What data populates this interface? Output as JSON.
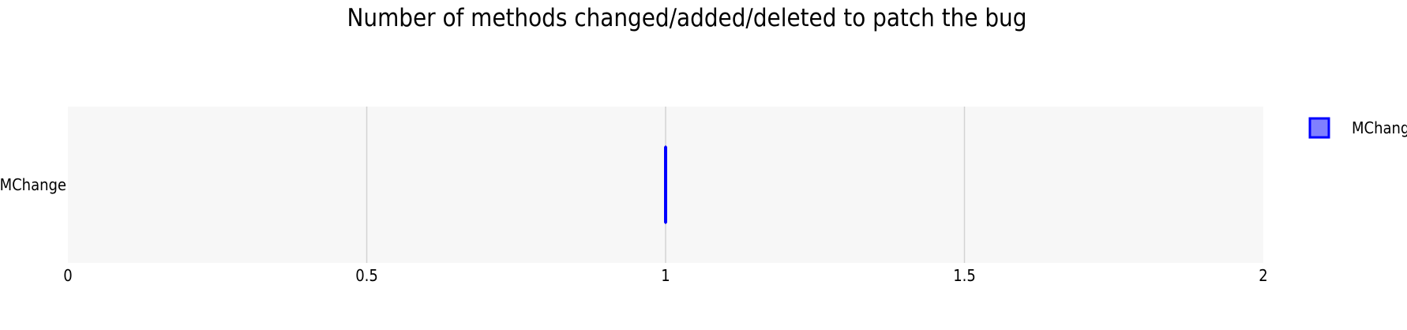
{
  "chart_data": {
    "type": "boxplot",
    "orientation": "horizontal",
    "title": "Number of methods changed/added/deleted to patch the bug",
    "xlabel": "",
    "ylabel": "",
    "xlim": [
      0,
      2
    ],
    "x_ticks": [
      {
        "value": 0,
        "label": "0"
      },
      {
        "value": 0.5,
        "label": "0.5"
      },
      {
        "value": 1,
        "label": "1"
      },
      {
        "value": 1.5,
        "label": "1.5"
      },
      {
        "value": 2,
        "label": "2"
      }
    ],
    "grid": true,
    "legend_position": "right",
    "series": [
      {
        "name": "MChange",
        "category_label": "MChange",
        "min": 1,
        "q1": 1,
        "median": 1,
        "q3": 1,
        "max": 1,
        "stroke_color": "#0000ff",
        "fill_color": "#8080ff"
      }
    ],
    "colors": {
      "plot_background": "#f7f7f7",
      "grid": "#d3d3d3"
    }
  }
}
